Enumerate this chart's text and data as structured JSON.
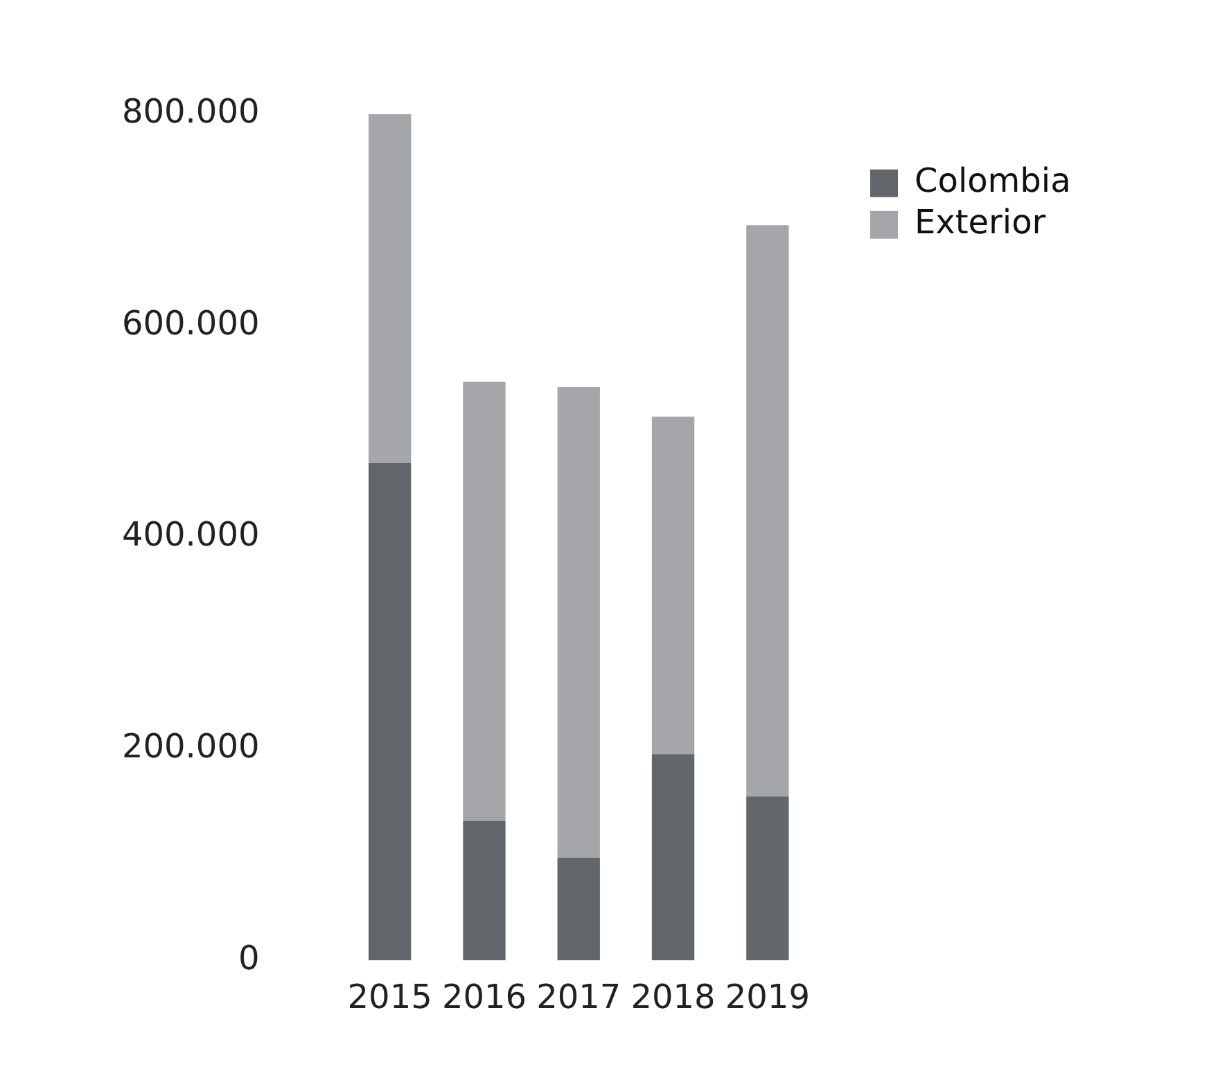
{
  "chart_data": {
    "type": "bar",
    "stacked": true,
    "categories": [
      "2015",
      "2016",
      "2017",
      "2018",
      "2019"
    ],
    "series": [
      {
        "name": "Colombia",
        "color": "#62666b",
        "values": [
          470000,
          132000,
          97000,
          195000,
          155000
        ]
      },
      {
        "name": "Exterior",
        "color": "#a4a6a9",
        "values": [
          330000,
          415000,
          445000,
          319000,
          540000
        ]
      }
    ],
    "ylim": [
      0,
      800000
    ],
    "yticks": [
      {
        "value": 0,
        "label": "0"
      },
      {
        "value": 200000,
        "label": "200.000"
      },
      {
        "value": 400000,
        "label": "400.000"
      },
      {
        "value": 600000,
        "label": "600.000"
      },
      {
        "value": 800000,
        "label": "800.000"
      }
    ],
    "grid": false,
    "legend": "top right"
  }
}
